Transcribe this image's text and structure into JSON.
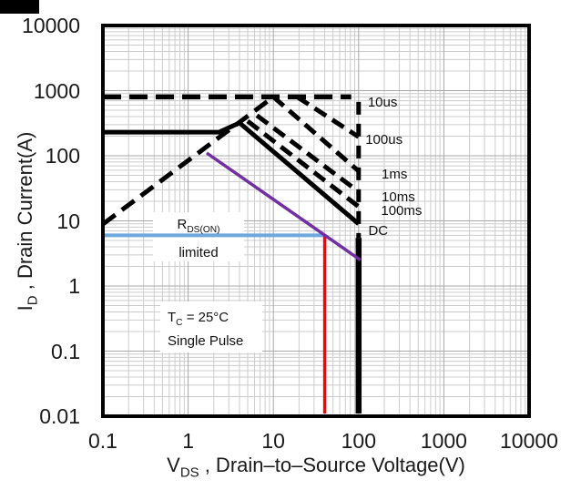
{
  "chart_data": {
    "type": "line",
    "scale": "log-log",
    "grid": "on",
    "x_axis": {
      "title_pre": "V",
      "title_sub": "DS",
      "title_post": " , Drain–to–Source Voltage(V)",
      "min": 0.1,
      "max": 10000,
      "ticks": [
        "0.1",
        "1",
        "10",
        "100",
        "1000",
        "10000"
      ]
    },
    "y_axis": {
      "title_pre": "I",
      "title_sub": "D",
      "title_post": " , Drain Current(A)",
      "min": 0.01,
      "max": 10000,
      "ticks": [
        "10000",
        "1000",
        "100",
        "10",
        "1",
        "0.1",
        "0.01"
      ]
    },
    "series": [
      {
        "name": "rdson-limit-line",
        "style": "dashed",
        "dash": "17 9",
        "color": "#000000",
        "width": 5,
        "points": [
          [
            0.1,
            8.9
          ],
          [
            10,
            800
          ]
        ]
      },
      {
        "name": "limit-10us",
        "style": "dashed",
        "dash": "20 9",
        "color": "#000000",
        "width": 5.5,
        "points": [
          [
            0.1,
            800
          ],
          [
            82,
            800
          ]
        ]
      },
      {
        "name": "limit-100us",
        "style": "dashed",
        "dash": "15 8",
        "color": "#000000",
        "width": 5,
        "points": [
          [
            19,
            800
          ],
          [
            100,
            195
          ]
        ]
      },
      {
        "name": "limit-1ms",
        "style": "dashed",
        "dash": "15 8",
        "color": "#000000",
        "width": 5,
        "points": [
          [
            10,
            800
          ],
          [
            100,
            58
          ]
        ]
      },
      {
        "name": "limit-10ms",
        "style": "dashed",
        "dash": "15 8",
        "color": "#000000",
        "width": 5,
        "points": [
          [
            6.4,
            415
          ],
          [
            100,
            28
          ]
        ]
      },
      {
        "name": "limit-100ms",
        "style": "dashed",
        "dash": "15 8",
        "color": "#000000",
        "width": 5,
        "points": [
          [
            5,
            340
          ],
          [
            100,
            16.5
          ]
        ]
      },
      {
        "name": "limit-dc",
        "style": "solid",
        "dash": "",
        "color": "#000000",
        "width": 5,
        "points": [
          [
            0.1,
            230
          ],
          [
            2.3,
            230
          ],
          [
            4,
            320
          ],
          [
            100,
            9
          ]
        ]
      },
      {
        "name": "voltage-limit-dashed",
        "style": "dashed",
        "dash": "14 10",
        "color": "#000000",
        "width": 5,
        "points": [
          [
            100,
            670
          ],
          [
            100,
            5.5
          ]
        ]
      },
      {
        "name": "voltage-limit-solid",
        "style": "solid",
        "dash": "",
        "color": "#000000",
        "width": 6.5,
        "points": [
          [
            100,
            5.5
          ],
          [
            100,
            0.011
          ]
        ]
      },
      {
        "name": "rdson-guide-blue",
        "style": "solid",
        "dash": "",
        "color": "#6FA8DC",
        "width": 4,
        "points": [
          [
            0.1,
            6
          ],
          [
            40,
            6
          ]
        ]
      },
      {
        "name": "voltage-guide-red",
        "style": "solid",
        "dash": "",
        "color": "#FF0000",
        "width": 3.5,
        "points": [
          [
            40,
            0.011
          ],
          [
            40,
            6
          ]
        ]
      },
      {
        "name": "diagonal-guide-purple",
        "style": "solid",
        "dash": "",
        "color": "#7030A0",
        "width": 3.5,
        "points": [
          [
            1.65,
            110
          ],
          [
            105,
            2.5
          ]
        ]
      }
    ],
    "curve_labels": [
      {
        "text": "10us",
        "v": 128,
        "i": 640
      },
      {
        "text": "100us",
        "v": 120,
        "i": 172
      },
      {
        "text": "1ms",
        "v": 186,
        "i": 51
      },
      {
        "text": "10ms",
        "v": 186,
        "i": 22.5
      },
      {
        "text": "100ms",
        "v": 183,
        "i": 13.8
      },
      {
        "text": "DC",
        "v": 130,
        "i": 7
      }
    ],
    "annotations": {
      "rdson": {
        "line1_pre": "R",
        "line1_sub": "DS(ON)",
        "line2": "limited"
      },
      "condition": {
        "line1_pre": "T",
        "line1_sub": "C",
        "line1_post": " = 25°C",
        "line2": "Single Pulse"
      }
    },
    "colors": {
      "curve": "#000000",
      "blue_guide": "#6FA8DC",
      "purple_guide": "#7030A0",
      "red_guide": "#FF0000",
      "grid_minor": "#cccccc",
      "grid_major": "#a8a8a8",
      "border": "#000000"
    }
  }
}
